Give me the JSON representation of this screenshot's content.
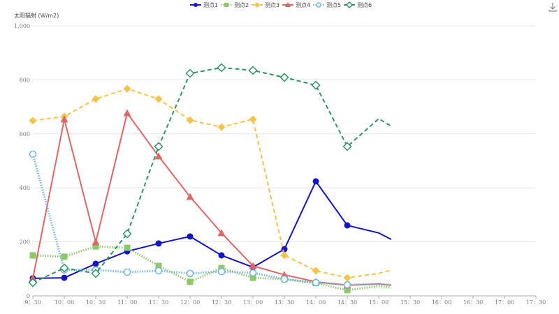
{
  "chart_data": {
    "type": "line",
    "ylabel": "太阳辐射 (W/m2)",
    "ylim": [
      0,
      1000
    ],
    "yticks": [
      "0",
      "200",
      "400",
      "600",
      "800",
      "1,000"
    ],
    "ytick_values": [
      0,
      200,
      400,
      600,
      800,
      1000
    ],
    "xticks": [
      "9：30",
      "10：00",
      "10：30",
      "11：00",
      "11：30",
      "12：00",
      "12：30",
      "13：00",
      "13：30",
      "14：00",
      "14：30",
      "15：00",
      "15：30",
      "16：00",
      "16：30",
      "17：00",
      "17：30"
    ],
    "xrange": [
      "9:30",
      "17:30"
    ],
    "x": [
      "9:30",
      "10:00",
      "10:30",
      "11:00",
      "11:30",
      "12:00",
      "12:30",
      "13:00",
      "13:30",
      "14:00",
      "14:30",
      "15:00",
      "15:12"
    ],
    "grid": "horizontal",
    "legend": "top-center",
    "series": [
      {
        "name": "测点1",
        "color": "#1515c8",
        "marker": "circle",
        "dash": "solid",
        "values": [
          65,
          67,
          119,
          165,
          194,
          220,
          150,
          106,
          173,
          424,
          261,
          233,
          209
        ]
      },
      {
        "name": "测点2",
        "color": "#8cc96b",
        "marker": "square",
        "dash": "dotted",
        "values": [
          150,
          145,
          183,
          178,
          111,
          52,
          103,
          67,
          62,
          47,
          21,
          36,
          31
        ]
      },
      {
        "name": "测点3",
        "color": "#f5c34a",
        "marker": "diamond",
        "dash": "dashed",
        "values": [
          649,
          664,
          729,
          767,
          729,
          651,
          625,
          654,
          150,
          93,
          67,
          83,
          96
        ]
      },
      {
        "name": "测点4",
        "color": "#e06666",
        "marker": "triangle",
        "dash": "solid",
        "values": [
          65,
          654,
          199,
          677,
          517,
          367,
          233,
          111,
          78,
          52,
          39,
          44,
          39
        ]
      },
      {
        "name": "测点5",
        "color": "#73b4dc",
        "marker": "open-circle",
        "dash": "dotted",
        "values": [
          525,
          96,
          96,
          88,
          93,
          83,
          90,
          85,
          62,
          49,
          41,
          44,
          41
        ]
      },
      {
        "name": "测点6",
        "color": "#2e9465",
        "marker": "open-diamond",
        "dash": "dashed",
        "values": [
          49,
          103,
          83,
          230,
          553,
          824,
          845,
          835,
          809,
          780,
          553,
          656,
          628
        ]
      }
    ]
  },
  "toolbar": {
    "download_icon": "download-icon"
  }
}
